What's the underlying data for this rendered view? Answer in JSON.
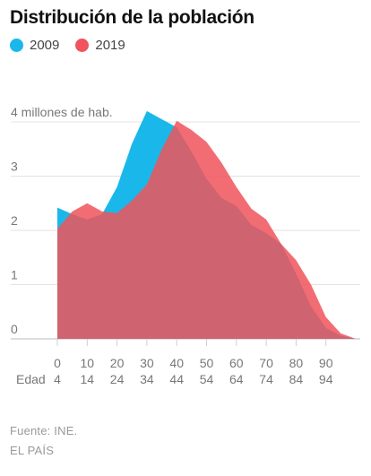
{
  "title": "Distribución de la población",
  "source": "Fuente: INE.",
  "credit": "EL PAÍS",
  "chart_data": {
    "type": "area",
    "title": "Distribución de la población",
    "ylabel": "4 millones de hab.",
    "x_axis_label": "Edad",
    "ylim": [
      0,
      4.3
    ],
    "xlim": [
      0,
      100
    ],
    "grid": true,
    "legend_position": "top-left",
    "x_tick_values": [
      0,
      10,
      20,
      30,
      40,
      50,
      60,
      70,
      80,
      90
    ],
    "x_ticks_top": [
      "0",
      "10",
      "20",
      "30",
      "40",
      "50",
      "60",
      "70",
      "80",
      "90"
    ],
    "x_ticks_bottom": [
      "4",
      "14",
      "24",
      "34",
      "44",
      "54",
      "64",
      "74",
      "84",
      "94"
    ],
    "y_ticks": [
      {
        "value": 0,
        "label": "0"
      },
      {
        "value": 1,
        "label": "1"
      },
      {
        "value": 2,
        "label": "2"
      },
      {
        "value": 3,
        "label": "3"
      },
      {
        "value": 4,
        "label": "4 millones de hab."
      }
    ],
    "x": [
      0,
      5,
      10,
      15,
      20,
      25,
      30,
      35,
      40,
      45,
      50,
      55,
      60,
      65,
      70,
      75,
      80,
      85,
      90,
      95,
      100
    ],
    "series": [
      {
        "name": "2009",
        "color": "#1ab8ea",
        "values": [
          2.42,
          2.3,
          2.2,
          2.3,
          2.8,
          3.6,
          4.2,
          4.05,
          3.9,
          3.45,
          2.95,
          2.6,
          2.45,
          2.1,
          1.95,
          1.75,
          1.2,
          0.6,
          0.2,
          0.06,
          0.0
        ]
      },
      {
        "name": "2019",
        "color": "#f0535b",
        "values": [
          2.03,
          2.35,
          2.5,
          2.35,
          2.32,
          2.55,
          2.85,
          3.5,
          4.02,
          3.85,
          3.63,
          3.25,
          2.8,
          2.4,
          2.2,
          1.75,
          1.45,
          1.0,
          0.4,
          0.1,
          0.0
        ]
      }
    ]
  }
}
